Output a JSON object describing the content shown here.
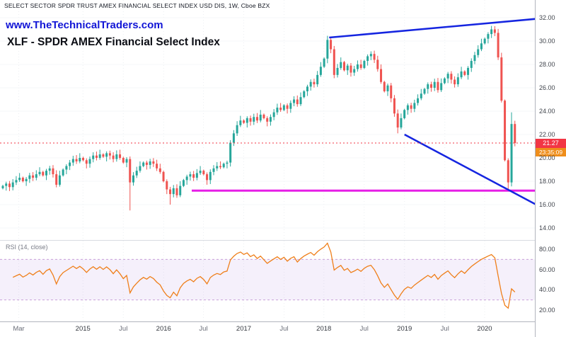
{
  "header": {
    "symbol_line": "SELECT SECTOR SPDR TRUST AMEX FINANCIAL SELECT INDEX USD DIS, 1W, Cboe BZX",
    "watermark_url": "www.TheTechnicalTraders.com",
    "watermark_title": "XLF - SPDR AMEX Financial Select Index"
  },
  "price_axis": {
    "tick_values": [
      32,
      30,
      28,
      26,
      24,
      22,
      20,
      18,
      16,
      14
    ],
    "badge_price": "21.27",
    "countdown": "23:35:09"
  },
  "time_axis": {
    "ticks": [
      {
        "label": "Mar",
        "f": 0.03,
        "major": false
      },
      {
        "label": "2015",
        "f": 0.151,
        "major": true
      },
      {
        "label": "Jul",
        "f": 0.227,
        "major": false
      },
      {
        "label": "2016",
        "f": 0.303,
        "major": true
      },
      {
        "label": "Jul",
        "f": 0.378,
        "major": false
      },
      {
        "label": "2017",
        "f": 0.454,
        "major": true
      },
      {
        "label": "Jul",
        "f": 0.53,
        "major": false
      },
      {
        "label": "2018",
        "f": 0.605,
        "major": true
      },
      {
        "label": "Jul",
        "f": 0.681,
        "major": false
      },
      {
        "label": "2019",
        "f": 0.757,
        "major": true
      },
      {
        "label": "Jul",
        "f": 0.833,
        "major": false
      },
      {
        "label": "2020",
        "f": 0.908,
        "major": true
      }
    ]
  },
  "rsi": {
    "label": "RSI (14, close)",
    "period": 14,
    "tick_values": [
      80,
      60,
      40,
      20
    ],
    "band": [
      30,
      70
    ]
  },
  "chart_data": {
    "type": "candlestick",
    "symbol": "XLF",
    "timeframe": "1W",
    "exchange": "Cboe BZX",
    "title": "XLF - SPDR AMEX Financial Select Index",
    "x_range": [
      "2014",
      "2020"
    ],
    "ylim": [
      13.4,
      32.9
    ],
    "current_price": 21.27,
    "closes": [
      17.6,
      17.8,
      17.5,
      17.9,
      18.1,
      18.3,
      18.0,
      18.2,
      18.5,
      18.3,
      18.6,
      18.8,
      18.5,
      18.9,
      19.1,
      18.6,
      17.7,
      18.5,
      19.0,
      19.3,
      19.6,
      19.9,
      19.7,
      20.0,
      19.8,
      19.5,
      19.9,
      20.2,
      20.0,
      20.3,
      20.1,
      20.4,
      20.2,
      19.9,
      20.3,
      20.0,
      19.6,
      19.9,
      17.9,
      18.5,
      18.9,
      19.3,
      19.6,
      19.4,
      19.7,
      19.5,
      19.1,
      18.8,
      18.0,
      17.3,
      16.9,
      17.4,
      16.8,
      17.6,
      18.1,
      18.4,
      18.6,
      18.3,
      18.7,
      18.9,
      18.6,
      18.1,
      18.8,
      19.1,
      19.3,
      19.2,
      19.5,
      19.6,
      21.3,
      22.1,
      22.8,
      23.2,
      23.0,
      23.4,
      23.1,
      23.5,
      23.2,
      23.7,
      23.4,
      23.1,
      23.5,
      23.9,
      24.3,
      24.1,
      24.5,
      24.2,
      24.7,
      25.0,
      24.6,
      25.2,
      25.7,
      26.1,
      26.5,
      26.3,
      27.1,
      27.8,
      28.5,
      30.1,
      29.3,
      27.1,
      27.7,
      28.2,
      27.5,
      27.9,
      27.3,
      27.6,
      28.0,
      27.7,
      28.3,
      28.7,
      28.9,
      28.4,
      27.6,
      26.5,
      25.7,
      26.2,
      25.1,
      23.8,
      22.6,
      23.4,
      24.1,
      24.5,
      24.2,
      24.7,
      25.1,
      25.5,
      25.9,
      26.3,
      26.0,
      26.5,
      25.8,
      26.4,
      26.8,
      27.2,
      26.7,
      26.3,
      26.9,
      27.4,
      27.1,
      27.7,
      28.3,
      28.8,
      29.3,
      29.8,
      30.2,
      30.6,
      31.0,
      30.7,
      28.6,
      24.9,
      19.8,
      17.9,
      22.9,
      21.27
    ],
    "wick_overrides": {
      "38": {
        "l": 15.5
      },
      "50": {
        "l": 16.0
      },
      "97": {
        "h": 30.45
      },
      "118": {
        "l": 22.1
      },
      "146": {
        "h": 31.3
      },
      "151": {
        "l": 17.2
      },
      "152": {
        "h": 23.9
      }
    },
    "trendlines": [
      {
        "name": "upper-resistance-trendline",
        "x1": 0.615,
        "p1": 30.3,
        "x2": 1.005,
        "p2": 31.9,
        "color": "#1525e0"
      },
      {
        "name": "lower-descending-trendline",
        "x1": 0.757,
        "p1": 22.0,
        "x2": 1.005,
        "p2": 16.0,
        "color": "#1525e0"
      }
    ],
    "support_line": {
      "name": "horizontal-support-line",
      "price": 17.2,
      "x1": 0.356,
      "x2": 1.005,
      "color": "#e61ee6"
    },
    "colors": {
      "up": "#26a69a",
      "down": "#ef5350",
      "rsi": "#ef7f1a",
      "price_line": "#f23645",
      "trendline": "#1525e0",
      "support": "#e61ee6"
    }
  }
}
